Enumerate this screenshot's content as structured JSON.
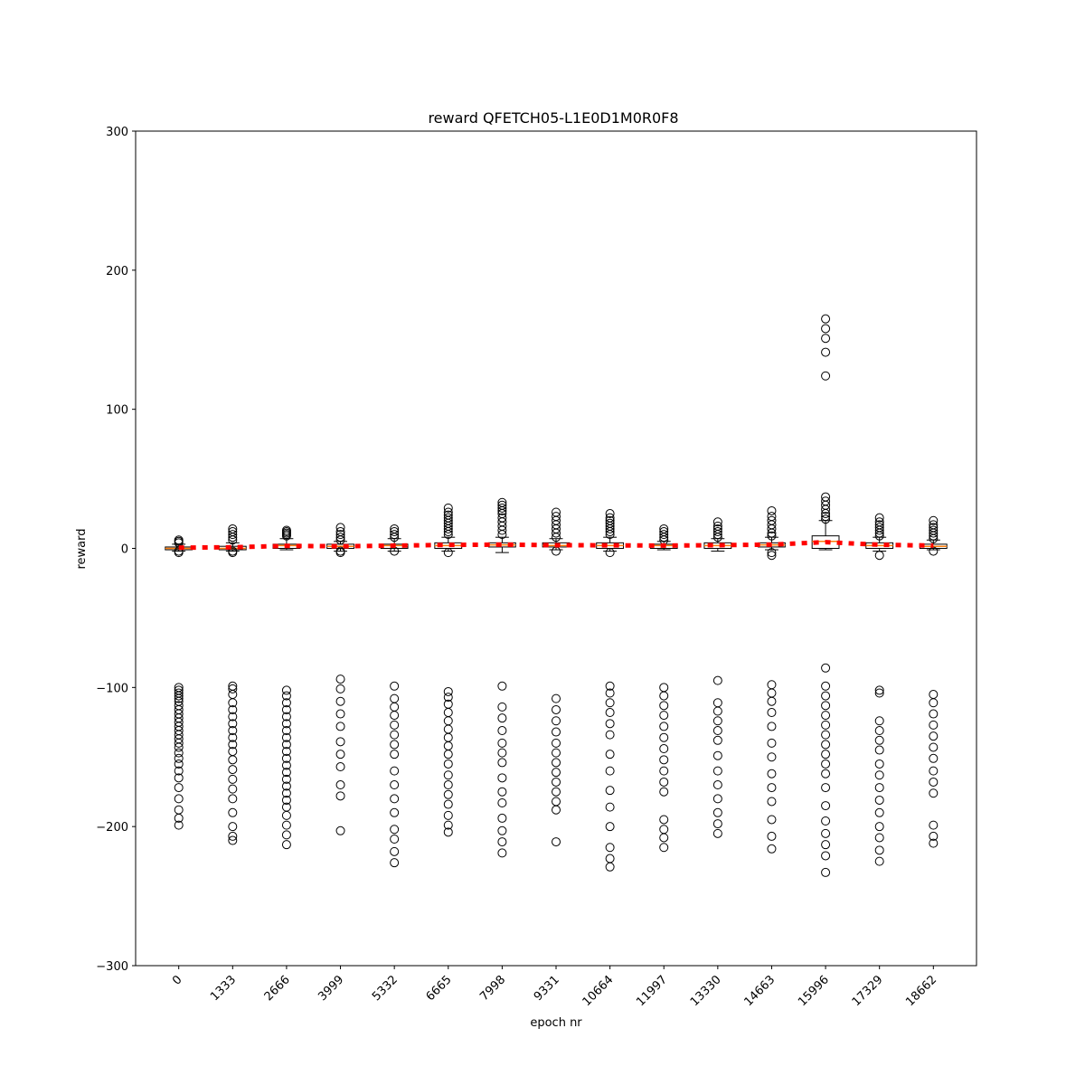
{
  "chart_data": {
    "type": "box",
    "title": "reward QFETCH05-L1E0D1M0R0F8",
    "xlabel": "epoch nr",
    "ylabel": "reward",
    "ylim": [
      -300,
      300
    ],
    "yticks": [
      -300,
      -200,
      -100,
      0,
      100,
      200,
      300
    ],
    "categories": [
      "0",
      "1333",
      "2666",
      "3999",
      "5332",
      "6665",
      "7998",
      "9331",
      "10664",
      "11997",
      "13330",
      "14663",
      "15996",
      "17329",
      "18662"
    ],
    "boxes": [
      {
        "q1": -1,
        "median": 0,
        "q3": 1,
        "whisker_low": -2,
        "whisker_high": 3,
        "mean": 0.5
      },
      {
        "q1": -1,
        "median": 0,
        "q3": 1.5,
        "whisker_low": -2,
        "whisker_high": 4,
        "mean": 0.8
      },
      {
        "q1": 0,
        "median": 2,
        "q3": 3,
        "whisker_low": -1,
        "whisker_high": 7,
        "mean": 1.8
      },
      {
        "q1": 0,
        "median": 1.5,
        "q3": 3,
        "whisker_low": -2,
        "whisker_high": 5,
        "mean": 1.5
      },
      {
        "q1": 0,
        "median": 2,
        "q3": 3,
        "whisker_low": -2,
        "whisker_high": 7,
        "mean": 2
      },
      {
        "q1": 0,
        "median": 2,
        "q3": 4,
        "whisker_low": -2,
        "whisker_high": 8,
        "mean": 2.5
      },
      {
        "q1": 1,
        "median": 2.5,
        "q3": 4,
        "whisker_low": -3,
        "whisker_high": 8,
        "mean": 2.7
      },
      {
        "q1": 1,
        "median": 2,
        "q3": 4,
        "whisker_low": -1,
        "whisker_high": 7,
        "mean": 2.3
      },
      {
        "q1": 0,
        "median": 2,
        "q3": 4,
        "whisker_low": -2,
        "whisker_high": 8,
        "mean": 2.2
      },
      {
        "q1": 0,
        "median": 2,
        "q3": 3,
        "whisker_low": -1,
        "whisker_high": 5,
        "mean": 2
      },
      {
        "q1": 0,
        "median": 2,
        "q3": 4,
        "whisker_low": -2,
        "whisker_high": 7,
        "mean": 2.3
      },
      {
        "q1": 1,
        "median": 2.5,
        "q3": 4,
        "whisker_low": -1,
        "whisker_high": 8,
        "mean": 2.7
      },
      {
        "q1": 0,
        "median": 5,
        "q3": 9,
        "whisker_low": -1,
        "whisker_high": 20,
        "mean": 4.5
      },
      {
        "q1": 0,
        "median": 2,
        "q3": 4,
        "whisker_low": -2,
        "whisker_high": 8,
        "mean": 2.6
      },
      {
        "q1": 0,
        "median": 1.5,
        "q3": 3,
        "whisker_low": -1,
        "whisker_high": 6,
        "mean": 2
      }
    ],
    "fliers": [
      [
        6,
        5,
        4,
        -2,
        -3,
        -100,
        -102,
        -104,
        -106,
        -108,
        -110,
        -113,
        -116,
        -119,
        -122,
        -125,
        -128,
        -131,
        -134,
        -137,
        -140,
        -143,
        -147,
        -151,
        -155,
        -160,
        -165,
        -172,
        -180,
        -188,
        -194,
        -199
      ],
      [
        14,
        12,
        10,
        8,
        6,
        -2,
        -3,
        -99,
        -101,
        -105,
        -111,
        -116,
        -121,
        -126,
        -131,
        -136,
        -141,
        -146,
        -152,
        -159,
        -166,
        -173,
        -180,
        -190,
        -200,
        -207,
        -210
      ],
      [
        13,
        12,
        11,
        10,
        9,
        -102,
        -106,
        -111,
        -116,
        -121,
        -126,
        -131,
        -136,
        -141,
        -146,
        -151,
        -156,
        -161,
        -166,
        -171,
        -176,
        -181,
        -186,
        -192,
        -199,
        -206,
        -213
      ],
      [
        15,
        12,
        10,
        8,
        6,
        -2,
        -3,
        -94,
        -101,
        -110,
        -119,
        -128,
        -139,
        -148,
        -157,
        -170,
        -178,
        -203
      ],
      [
        14,
        12,
        10,
        8,
        -2,
        -99,
        -108,
        -114,
        -120,
        -127,
        -134,
        -141,
        -148,
        -160,
        -170,
        -180,
        -190,
        -202,
        -209,
        -218,
        -226
      ],
      [
        29,
        26,
        24,
        22,
        20,
        18,
        16,
        14,
        12,
        10,
        -3,
        -103,
        -107,
        -112,
        -118,
        -124,
        -130,
        -136,
        -142,
        -148,
        -155,
        -163,
        -170,
        -177,
        -184,
        -192,
        -199,
        -204
      ],
      [
        33,
        31,
        29,
        27,
        25,
        22,
        19,
        16,
        13,
        10,
        -99,
        -114,
        -122,
        -131,
        -140,
        -147,
        -154,
        -165,
        -175,
        -183,
        -194,
        -203,
        -211,
        -219
      ],
      [
        26,
        23,
        20,
        17,
        14,
        11,
        8,
        -2,
        -108,
        -116,
        -124,
        -132,
        -140,
        -147,
        -154,
        -161,
        -168,
        -175,
        -182,
        -188,
        -211
      ],
      [
        25,
        22,
        20,
        18,
        16,
        14,
        12,
        10,
        -3,
        -99,
        -104,
        -111,
        -118,
        -126,
        -134,
        -148,
        -160,
        -174,
        -186,
        -200,
        -215,
        -223,
        -229
      ],
      [
        14,
        12,
        10,
        8,
        6,
        -100,
        -106,
        -113,
        -120,
        -128,
        -136,
        -144,
        -152,
        -160,
        -168,
        -175,
        -195,
        -202,
        -208,
        -215
      ],
      [
        19,
        16,
        14,
        12,
        10,
        8,
        -95,
        -111,
        -117,
        -124,
        -131,
        -138,
        -149,
        -160,
        -170,
        -180,
        -190,
        -198,
        -205
      ],
      [
        27,
        23,
        20,
        17,
        14,
        11,
        9,
        -3,
        -5,
        -98,
        -104,
        -110,
        -118,
        -128,
        -140,
        -150,
        -162,
        -172,
        -182,
        -195,
        -207,
        -216
      ],
      [
        165,
        158,
        151,
        141,
        124,
        37,
        34,
        31,
        28,
        25,
        23,
        21,
        -86,
        -99,
        -106,
        -113,
        -120,
        -127,
        -134,
        -141,
        -148,
        -155,
        -162,
        -172,
        -185,
        -196,
        -205,
        -213,
        -221,
        -233
      ],
      [
        22,
        19,
        17,
        15,
        13,
        11,
        9,
        -5,
        -102,
        -104,
        -124,
        -131,
        -138,
        -145,
        -155,
        -163,
        -172,
        -181,
        -190,
        -200,
        -208,
        -217,
        -225
      ],
      [
        20,
        17,
        15,
        13,
        11,
        9,
        7,
        -2,
        -105,
        -111,
        -119,
        -127,
        -135,
        -143,
        -151,
        -160,
        -168,
        -176,
        -199,
        -207,
        -212
      ]
    ],
    "mean_line_color": "#ff0000",
    "median_color": "#ff7f0e",
    "grid": false
  }
}
